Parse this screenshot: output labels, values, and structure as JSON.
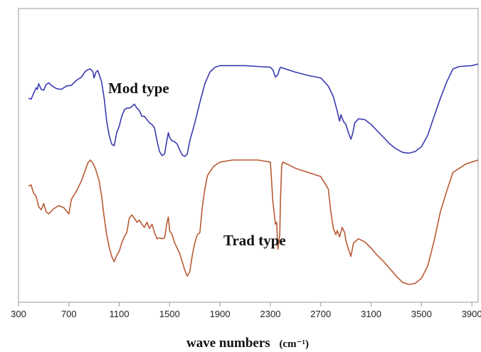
{
  "chart_data": {
    "type": "line",
    "title": "",
    "xlabel": "wave numbers",
    "xlabel_unit": "(cm⁻¹)",
    "xlim": [
      300,
      3950
    ],
    "x_ticks": [
      300,
      700,
      1100,
      1500,
      1900,
      2300,
      2700,
      3100,
      3500,
      3900
    ],
    "ylabel": "",
    "y_ticks_shown": false,
    "grid": false,
    "legend": "none",
    "series": [
      {
        "name": "Mod type",
        "color": "#3a3ab0",
        "points": [
          [
            380,
            0.4
          ],
          [
            400,
            0.41
          ],
          [
            420,
            0.34
          ],
          [
            440,
            0.27
          ],
          [
            450,
            0.29
          ],
          [
            460,
            0.22
          ],
          [
            480,
            0.29
          ],
          [
            500,
            0.3
          ],
          [
            520,
            0.23
          ],
          [
            540,
            0.21
          ],
          [
            560,
            0.24
          ],
          [
            600,
            0.28
          ],
          [
            640,
            0.29
          ],
          [
            680,
            0.25
          ],
          [
            720,
            0.24
          ],
          [
            760,
            0.18
          ],
          [
            800,
            0.14
          ],
          [
            830,
            0.07
          ],
          [
            850,
            0.05
          ],
          [
            870,
            0.04
          ],
          [
            890,
            0.07
          ],
          [
            900,
            0.15
          ],
          [
            915,
            0.08
          ],
          [
            930,
            0.06
          ],
          [
            945,
            0.13
          ],
          [
            960,
            0.2
          ],
          [
            980,
            0.4
          ],
          [
            1000,
            0.68
          ],
          [
            1020,
            0.85
          ],
          [
            1040,
            0.96
          ],
          [
            1060,
            0.98
          ],
          [
            1080,
            0.82
          ],
          [
            1100,
            0.74
          ],
          [
            1120,
            0.62
          ],
          [
            1140,
            0.54
          ],
          [
            1160,
            0.52
          ],
          [
            1180,
            0.52
          ],
          [
            1200,
            0.5
          ],
          [
            1220,
            0.47
          ],
          [
            1240,
            0.52
          ],
          [
            1260,
            0.55
          ],
          [
            1280,
            0.62
          ],
          [
            1300,
            0.62
          ],
          [
            1320,
            0.66
          ],
          [
            1340,
            0.7
          ],
          [
            1360,
            0.72
          ],
          [
            1380,
            0.76
          ],
          [
            1400,
            0.92
          ],
          [
            1420,
            1.05
          ],
          [
            1440,
            1.1
          ],
          [
            1460,
            1.08
          ],
          [
            1480,
            0.9
          ],
          [
            1490,
            0.82
          ],
          [
            1500,
            0.88
          ],
          [
            1520,
            0.92
          ],
          [
            1540,
            0.93
          ],
          [
            1560,
            0.96
          ],
          [
            1580,
            1.03
          ],
          [
            1600,
            1.09
          ],
          [
            1620,
            1.11
          ],
          [
            1640,
            1.08
          ],
          [
            1660,
            0.92
          ],
          [
            1700,
            0.7
          ],
          [
            1740,
            0.45
          ],
          [
            1780,
            0.22
          ],
          [
            1820,
            0.08
          ],
          [
            1860,
            0.02
          ],
          [
            1900,
            0.0
          ],
          [
            2000,
            0.0
          ],
          [
            2100,
            0.0
          ],
          [
            2200,
            0.01
          ],
          [
            2300,
            0.02
          ],
          [
            2320,
            0.05
          ],
          [
            2340,
            0.14
          ],
          [
            2360,
            0.11
          ],
          [
            2370,
            0.05
          ],
          [
            2380,
            0.02
          ],
          [
            2400,
            0.03
          ],
          [
            2500,
            0.08
          ],
          [
            2600,
            0.12
          ],
          [
            2700,
            0.15
          ],
          [
            2760,
            0.25
          ],
          [
            2800,
            0.38
          ],
          [
            2830,
            0.55
          ],
          [
            2850,
            0.68
          ],
          [
            2860,
            0.6
          ],
          [
            2870,
            0.64
          ],
          [
            2880,
            0.68
          ],
          [
            2900,
            0.72
          ],
          [
            2920,
            0.82
          ],
          [
            2940,
            0.9
          ],
          [
            2955,
            0.82
          ],
          [
            2970,
            0.7
          ],
          [
            3000,
            0.65
          ],
          [
            3050,
            0.66
          ],
          [
            3100,
            0.72
          ],
          [
            3150,
            0.8
          ],
          [
            3200,
            0.88
          ],
          [
            3250,
            0.96
          ],
          [
            3300,
            1.02
          ],
          [
            3350,
            1.06
          ],
          [
            3400,
            1.07
          ],
          [
            3450,
            1.05
          ],
          [
            3500,
            0.99
          ],
          [
            3550,
            0.85
          ],
          [
            3600,
            0.62
          ],
          [
            3650,
            0.4
          ],
          [
            3700,
            0.2
          ],
          [
            3750,
            0.04
          ],
          [
            3800,
            0.01
          ],
          [
            3900,
            0.0
          ],
          [
            3950,
            -0.02
          ]
        ]
      },
      {
        "name": "Trad type",
        "color": "#b85a33",
        "points": [
          [
            380,
            0.25
          ],
          [
            400,
            0.24
          ],
          [
            420,
            0.32
          ],
          [
            440,
            0.35
          ],
          [
            460,
            0.45
          ],
          [
            480,
            0.48
          ],
          [
            500,
            0.42
          ],
          [
            520,
            0.5
          ],
          [
            540,
            0.52
          ],
          [
            580,
            0.47
          ],
          [
            620,
            0.44
          ],
          [
            660,
            0.46
          ],
          [
            700,
            0.52
          ],
          [
            720,
            0.38
          ],
          [
            760,
            0.3
          ],
          [
            800,
            0.2
          ],
          [
            830,
            0.1
          ],
          [
            850,
            0.03
          ],
          [
            870,
            0.0
          ],
          [
            890,
            0.03
          ],
          [
            910,
            0.08
          ],
          [
            940,
            0.2
          ],
          [
            960,
            0.35
          ],
          [
            980,
            0.55
          ],
          [
            1000,
            0.72
          ],
          [
            1020,
            0.84
          ],
          [
            1040,
            0.93
          ],
          [
            1060,
            0.98
          ],
          [
            1080,
            0.92
          ],
          [
            1100,
            0.88
          ],
          [
            1120,
            0.8
          ],
          [
            1140,
            0.74
          ],
          [
            1160,
            0.7
          ],
          [
            1180,
            0.56
          ],
          [
            1200,
            0.53
          ],
          [
            1220,
            0.56
          ],
          [
            1240,
            0.6
          ],
          [
            1260,
            0.58
          ],
          [
            1280,
            0.62
          ],
          [
            1300,
            0.65
          ],
          [
            1320,
            0.6
          ],
          [
            1340,
            0.66
          ],
          [
            1360,
            0.62
          ],
          [
            1380,
            0.7
          ],
          [
            1400,
            0.76
          ],
          [
            1420,
            0.75
          ],
          [
            1440,
            0.76
          ],
          [
            1460,
            0.75
          ],
          [
            1480,
            0.6
          ],
          [
            1490,
            0.55
          ],
          [
            1500,
            0.68
          ],
          [
            1520,
            0.72
          ],
          [
            1540,
            0.8
          ],
          [
            1560,
            0.85
          ],
          [
            1580,
            0.9
          ],
          [
            1600,
            0.98
          ],
          [
            1620,
            1.06
          ],
          [
            1640,
            1.12
          ],
          [
            1660,
            1.08
          ],
          [
            1680,
            0.92
          ],
          [
            1700,
            0.8
          ],
          [
            1720,
            0.72
          ],
          [
            1740,
            0.7
          ],
          [
            1760,
            0.45
          ],
          [
            1780,
            0.28
          ],
          [
            1800,
            0.15
          ],
          [
            1850,
            0.06
          ],
          [
            1900,
            0.02
          ],
          [
            2000,
            0.0
          ],
          [
            2200,
            0.0
          ],
          [
            2300,
            0.02
          ],
          [
            2320,
            0.4
          ],
          [
            2340,
            0.62
          ],
          [
            2350,
            0.6
          ],
          [
            2360,
            0.86
          ],
          [
            2375,
            0.72
          ],
          [
            2380,
            0.4
          ],
          [
            2390,
            0.05
          ],
          [
            2400,
            0.02
          ],
          [
            2500,
            0.08
          ],
          [
            2600,
            0.12
          ],
          [
            2700,
            0.16
          ],
          [
            2760,
            0.28
          ],
          [
            2780,
            0.5
          ],
          [
            2800,
            0.66
          ],
          [
            2820,
            0.72
          ],
          [
            2830,
            0.68
          ],
          [
            2850,
            0.74
          ],
          [
            2870,
            0.65
          ],
          [
            2890,
            0.7
          ],
          [
            2900,
            0.78
          ],
          [
            2920,
            0.86
          ],
          [
            2940,
            0.93
          ],
          [
            2960,
            0.8
          ],
          [
            3000,
            0.76
          ],
          [
            3050,
            0.79
          ],
          [
            3100,
            0.85
          ],
          [
            3150,
            0.92
          ],
          [
            3200,
            0.98
          ],
          [
            3250,
            1.05
          ],
          [
            3300,
            1.12
          ],
          [
            3350,
            1.18
          ],
          [
            3400,
            1.2
          ],
          [
            3450,
            1.19
          ],
          [
            3500,
            1.14
          ],
          [
            3550,
            1.02
          ],
          [
            3600,
            0.78
          ],
          [
            3650,
            0.5
          ],
          [
            3700,
            0.3
          ],
          [
            3750,
            0.12
          ],
          [
            3800,
            0.08
          ],
          [
            3850,
            0.04
          ],
          [
            3900,
            0.02
          ],
          [
            3950,
            0.0
          ]
        ]
      }
    ]
  }
}
